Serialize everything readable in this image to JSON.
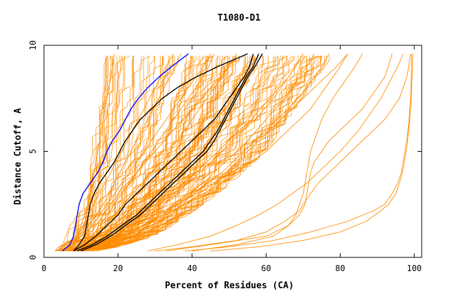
{
  "chart_data": {
    "type": "line",
    "title": "T1080-D1",
    "xlabel": "Percent of Residues (CA)",
    "ylabel": "Distance Cutoff, A",
    "xlim": [
      0,
      102
    ],
    "ylim": [
      0,
      10
    ],
    "x_ticks": [
      0,
      20,
      40,
      60,
      80,
      100
    ],
    "y_ticks": [
      0,
      5,
      10
    ],
    "x_tick_labels": [
      "0",
      "20",
      "40",
      "60",
      "80",
      "100"
    ],
    "y_tick_labels": [
      "0",
      "5",
      "10"
    ],
    "grid": false,
    "colors": {
      "models": "#ff8c00",
      "highlight": "#0000ff",
      "reference": "#000000",
      "axis": "#000000"
    },
    "background_band": {
      "y": [
        0.3,
        0.5,
        1.0,
        2.0,
        3.0,
        4.0,
        5.0,
        6.0,
        7.0,
        8.0,
        9.0,
        9.6
      ],
      "x_left": [
        4,
        5,
        7,
        9,
        10,
        11,
        12,
        12.5,
        13,
        13.5,
        14,
        14
      ],
      "x_right": [
        13,
        19,
        29,
        38,
        46,
        53,
        59,
        63,
        67,
        71,
        75,
        77
      ],
      "count": 120
    },
    "series": [
      {
        "role": "model",
        "color": "#ff8c00",
        "y": [
          0.3,
          0.6,
          1,
          1.5,
          2,
          2.5,
          3,
          3.5,
          4,
          4.5,
          5,
          5.5,
          6,
          6.5,
          7,
          7.5,
          8,
          8.5,
          9,
          9.6
        ],
        "x": [
          7,
          8,
          9,
          10,
          11,
          12,
          12.5,
          13,
          13.5,
          14,
          14.5,
          15,
          15.5,
          16,
          16.5,
          17,
          17.5,
          18,
          18.5,
          19
        ]
      },
      {
        "role": "model",
        "color": "#ff8c00",
        "y": [
          0.3,
          0.6,
          1,
          1.5,
          2,
          2.5,
          3,
          3.5,
          4,
          4.5,
          5,
          5.5,
          6,
          6.5,
          7,
          7.5,
          8,
          8.5,
          9,
          9.6
        ],
        "x": [
          9,
          11,
          13,
          15,
          17,
          19,
          21,
          23,
          25,
          27,
          29,
          31,
          33,
          35,
          37,
          39,
          41,
          43,
          44.5,
          46
        ]
      },
      {
        "role": "model",
        "color": "#ff8c00",
        "y": [
          0.3,
          0.6,
          1,
          1.5,
          2,
          2.5,
          3,
          3.5,
          4,
          4.5,
          5,
          5.5,
          6,
          6.5,
          7,
          7.5,
          8,
          8.5,
          9,
          9.6
        ],
        "x": [
          10,
          13,
          16,
          19,
          22,
          25,
          28,
          31,
          34,
          36.5,
          39,
          41.5,
          44,
          46.5,
          49,
          51,
          53,
          55,
          57,
          59
        ]
      },
      {
        "role": "model",
        "color": "#ff8c00",
        "y": [
          0.3,
          0.6,
          1,
          1.5,
          2,
          2.5,
          3,
          3.5,
          4,
          4.5,
          5,
          5.5,
          6,
          6.5,
          7,
          7.5,
          8,
          8.5,
          9,
          9.6
        ],
        "x": [
          11,
          15,
          19,
          23,
          27,
          31,
          35,
          39,
          42,
          45,
          48,
          51,
          54,
          57,
          59.5,
          62,
          64,
          66,
          68,
          70
        ]
      },
      {
        "role": "model",
        "color": "#ff8c00",
        "y": [
          0.3,
          0.6,
          1,
          1.5,
          2,
          2.5,
          3,
          3.5,
          4,
          4.5,
          5,
          5.5,
          6,
          6.5,
          7,
          7.5,
          8,
          8.5,
          9,
          9.6
        ],
        "x": [
          6,
          7.5,
          9,
          10.5,
          12,
          13.5,
          15,
          16.5,
          18,
          19.5,
          21,
          22.5,
          24,
          25.5,
          27,
          28.5,
          30,
          31.5,
          33,
          35
        ]
      },
      {
        "role": "model",
        "color": "#ff8c00",
        "y": [
          0.3,
          0.6,
          1,
          1.5,
          2,
          2.5,
          3,
          3.5,
          4,
          4.5,
          5,
          5.5,
          6,
          6.5,
          7,
          7.5,
          8,
          8.5,
          9,
          9.6
        ],
        "x": [
          8,
          10,
          12,
          14,
          16,
          18,
          20,
          22.5,
          25,
          27.5,
          30,
          32.5,
          35,
          37.5,
          40,
          42.5,
          45,
          47.5,
          50,
          52
        ]
      },
      {
        "role": "model",
        "color": "#ff8c00",
        "y": [
          0.3,
          0.6,
          1,
          1.5,
          2,
          2.5,
          3,
          3.5,
          4,
          4.5,
          5,
          5.5,
          6,
          6.5,
          7,
          7.5,
          8,
          8.5,
          9,
          9.6
        ],
        "x": [
          12,
          17,
          22,
          27,
          32,
          36,
          40,
          44,
          48,
          51,
          54,
          57,
          60,
          63,
          66,
          68.5,
          71,
          73,
          75,
          77
        ]
      },
      {
        "role": "model",
        "color": "#ff8c00",
        "y": [
          0.3,
          0.6,
          1,
          1.5,
          2,
          2.5,
          3,
          3.5,
          4,
          4.5,
          5,
          5.5,
          6,
          6.5,
          7,
          7.5,
          8,
          8.5,
          9,
          9.6
        ],
        "x": [
          9,
          11.5,
          14,
          16.5,
          19,
          21.5,
          24,
          26.5,
          29,
          31.5,
          34,
          36,
          38,
          40,
          42,
          44,
          46,
          48,
          50,
          52
        ]
      },
      {
        "role": "model",
        "color": "#ff8c00",
        "y": [
          0.3,
          0.6,
          1,
          1.5,
          2,
          2.5,
          3,
          3.5,
          4,
          4.5,
          5,
          5.5,
          6,
          6.5,
          7,
          7.5,
          8,
          8.5,
          9,
          9.6
        ],
        "x": [
          10,
          14,
          18,
          22,
          26,
          30,
          34,
          37.5,
          41,
          44,
          47,
          50,
          53,
          56,
          58.5,
          61,
          63.5,
          66,
          68,
          70
        ]
      },
      {
        "role": "model",
        "color": "#ff8c00",
        "y": [
          0.3,
          0.6,
          1,
          1.5,
          2,
          2.5,
          3,
          3.5,
          4,
          4.5,
          5,
          5.5,
          6,
          6.5,
          7,
          7.5,
          8,
          8.5,
          9,
          9.6
        ],
        "x": [
          7,
          9,
          11,
          13,
          15,
          17,
          19,
          21,
          23,
          25,
          27,
          29,
          31,
          33,
          35,
          37,
          39,
          41,
          43,
          45
        ]
      },
      {
        "role": "model",
        "color": "#ff8c00",
        "y": [
          0.3,
          0.5,
          0.8,
          1.2,
          1.7,
          2.2,
          2.5,
          3,
          3.5,
          4,
          4.5,
          5,
          5.5,
          6,
          6.5,
          7,
          7.5,
          8,
          8.5,
          9,
          9.6
        ],
        "x": [
          30,
          40,
          52,
          60,
          65,
          69,
          70,
          72,
          74,
          77,
          80,
          83,
          86,
          89,
          92,
          94,
          96,
          97,
          98,
          98.5,
          99
        ]
      },
      {
        "role": "model",
        "color": "#ff8c00",
        "y": [
          0.3,
          0.5,
          0.8,
          1.2,
          1.7,
          2.2,
          2.5,
          3,
          3.5,
          4,
          4.5,
          5,
          5.5,
          6,
          6.5,
          7,
          7.5,
          8,
          8.5,
          9,
          9.6
        ],
        "x": [
          38,
          50,
          62,
          72,
          82,
          89,
          92,
          94,
          95.5,
          96.5,
          97,
          97.5,
          98,
          98.3,
          98.6,
          98.8,
          99,
          99.1,
          99.2,
          99.2,
          99.3
        ]
      },
      {
        "role": "model",
        "color": "#ff8c00",
        "y": [
          0.3,
          0.5,
          0.8,
          1.2,
          1.7,
          2.2,
          2.5,
          3,
          3.5,
          4,
          4.5,
          5,
          5.5,
          6,
          6.5,
          7,
          7.5,
          8,
          8.5,
          9,
          9.6
        ],
        "x": [
          45,
          58,
          70,
          80,
          87,
          91,
          93,
          95,
          96,
          96.8,
          97.3,
          97.8,
          98.2,
          98.5,
          98.8,
          99,
          99.2,
          99.3,
          99.4,
          99.5,
          99.6
        ]
      },
      {
        "role": "model",
        "color": "#ff8c00",
        "y": [
          0.3,
          0.6,
          1,
          1.5,
          2,
          2.5,
          3,
          3.5,
          4,
          4.5,
          5,
          5.5,
          6,
          6.5,
          7,
          7.5,
          8,
          8.5,
          9,
          9.6
        ],
        "x": [
          33,
          45,
          60,
          66,
          69,
          70.5,
          71,
          71.5,
          72,
          73,
          75,
          77,
          80,
          83,
          86,
          88,
          90,
          92,
          93,
          94
        ]
      },
      {
        "role": "model",
        "color": "#ff8c00",
        "y": [
          0.3,
          0.6,
          1,
          1.5,
          2,
          2.5,
          3,
          3.5,
          4,
          4.5,
          5,
          5.5,
          6,
          6.5,
          7,
          7.5,
          8,
          8.5,
          9,
          9.6
        ],
        "x": [
          12,
          16,
          21,
          27,
          33,
          38,
          43,
          48,
          52,
          56,
          60,
          63,
          66,
          69,
          72,
          74,
          76,
          78,
          80,
          82
        ]
      },
      {
        "role": "model",
        "color": "#ff8c00",
        "y": [
          0.3,
          0.6,
          1,
          1.5,
          2,
          2.5,
          3,
          3.5,
          4,
          4.5,
          5,
          5.5,
          6,
          6.5,
          7,
          7.5,
          8,
          8.5,
          9,
          9.6
        ],
        "x": [
          40,
          52,
          62,
          66,
          68,
          69,
          70,
          70.5,
          71,
          71.5,
          72,
          73,
          74,
          75,
          76.5,
          78,
          80,
          82,
          84,
          86
        ]
      },
      {
        "role": "model",
        "color": "#ff8c00",
        "y": [
          0.3,
          0.6,
          1,
          1.5,
          2,
          2.5,
          3,
          3.5,
          4,
          4.5,
          5,
          5.5,
          6,
          6.5,
          7,
          7.5,
          8,
          8.5,
          9,
          9.6
        ],
        "x": [
          14,
          19,
          24,
          29,
          34,
          38,
          42,
          46,
          49,
          52,
          55,
          58,
          61,
          64,
          67,
          70,
          73,
          76,
          79,
          82
        ]
      },
      {
        "role": "model",
        "color": "#ff8c00",
        "y": [
          0.3,
          0.6,
          1,
          1.5,
          2,
          2.5,
          3,
          3.5,
          4,
          4.5,
          5,
          5.5,
          6,
          6.5,
          7,
          7.5,
          8,
          8.5,
          9,
          9.6
        ],
        "x": [
          6,
          8,
          10,
          12,
          14,
          16,
          17.5,
          19,
          20.5,
          22,
          23.5,
          25,
          26.5,
          28,
          29.5,
          31,
          32.5,
          34,
          35.5,
          37
        ]
      },
      {
        "role": "model",
        "color": "#ff8c00",
        "y": [
          0.3,
          0.6,
          1,
          1.5,
          2,
          2.5,
          3,
          3.5,
          4,
          4.5,
          5,
          5.5,
          6,
          6.5,
          7,
          7.5,
          8,
          8.5,
          9,
          9.6
        ],
        "x": [
          28,
          36,
          45,
          52,
          58,
          63,
          67,
          71,
          74,
          77,
          80,
          82.5,
          85,
          87,
          89,
          91,
          92.5,
          94,
          95.5,
          97
        ]
      },
      {
        "role": "model",
        "color": "#ff8c00",
        "y": [
          0.3,
          0.6,
          1,
          1.5,
          2,
          2.5,
          3,
          3.5,
          4,
          4.5,
          5,
          5.5,
          6,
          6.5,
          7,
          7.5,
          8,
          8.5,
          9,
          9.6
        ],
        "x": [
          13,
          17,
          22,
          27,
          31,
          35,
          39,
          43,
          46,
          49,
          52,
          55,
          57.5,
          60,
          62.5,
          65,
          67,
          69,
          71,
          73
        ]
      },
      {
        "role": "highlight",
        "color": "#0000ff",
        "y": [
          0.3,
          0.6,
          1,
          1.5,
          2,
          2.5,
          3,
          3.5,
          4,
          4.5,
          5,
          5.5,
          6,
          6.5,
          7,
          7.5,
          8,
          8.5,
          9,
          9.6
        ],
        "x": [
          5,
          7,
          8,
          8.5,
          9,
          9.5,
          10.5,
          12.5,
          14.5,
          16,
          17,
          18.5,
          20.5,
          22,
          23.5,
          25.5,
          28,
          31,
          34.5,
          39
        ]
      },
      {
        "role": "reference",
        "color": "#000000",
        "y": [
          0.3,
          0.6,
          1,
          1.5,
          2,
          2.5,
          3,
          3.5,
          4,
          4.5,
          5,
          5.5,
          6,
          6.5,
          7,
          7.5,
          8,
          8.5,
          9,
          9.6
        ],
        "x": [
          8,
          9.5,
          11,
          11.5,
          12,
          12.5,
          13.5,
          15,
          17,
          19,
          20.5,
          22,
          24,
          26,
          29,
          32,
          36,
          41,
          47,
          55
        ]
      },
      {
        "role": "reference",
        "color": "#000000",
        "y": [
          0.3,
          0.6,
          1,
          1.5,
          2,
          2.5,
          3,
          3.5,
          4,
          4.5,
          5,
          5.5,
          6,
          6.5,
          7,
          7.5,
          8,
          8.5,
          9,
          9.6
        ],
        "x": [
          8,
          11,
          14,
          17,
          20,
          22,
          25,
          28,
          31,
          34,
          37,
          40,
          43,
          46,
          48,
          50,
          52,
          54,
          55.5,
          56.5
        ]
      },
      {
        "role": "reference",
        "color": "#000000",
        "y": [
          0.3,
          0.6,
          1,
          1.5,
          2,
          2.5,
          3,
          3.5,
          4,
          4.5,
          5,
          5.5,
          6,
          6.5,
          7,
          7.5,
          8,
          8.5,
          9,
          9.6
        ],
        "x": [
          9,
          13,
          17,
          21,
          25,
          28,
          31,
          34,
          37,
          40,
          43,
          45,
          47,
          48.5,
          50,
          51.5,
          53,
          54.5,
          56.5,
          58
        ]
      },
      {
        "role": "reference",
        "color": "#000000",
        "y": [
          0.3,
          0.6,
          1,
          1.5,
          2,
          2.5,
          3,
          3.5,
          4,
          4.5,
          5,
          5.5,
          6,
          6.5,
          7,
          7.5,
          8,
          8.5,
          9,
          9.6
        ],
        "x": [
          10,
          14,
          18,
          22,
          26,
          29,
          32,
          35,
          38,
          41,
          44,
          46,
          47.5,
          49,
          50.5,
          52,
          53.5,
          55,
          57,
          59
        ]
      }
    ]
  }
}
